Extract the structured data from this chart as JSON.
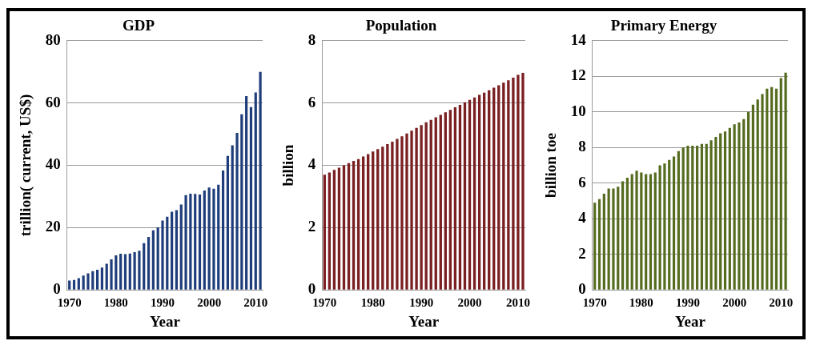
{
  "chart_data": [
    {
      "type": "bar",
      "title": "GDP",
      "xlabel": "Year",
      "ylabel": "trillion( current, US$)",
      "categories": [
        "1970",
        null,
        null,
        null,
        null,
        null,
        null,
        null,
        null,
        null,
        "1980",
        null,
        null,
        null,
        null,
        null,
        null,
        null,
        null,
        null,
        "1990",
        null,
        null,
        null,
        null,
        null,
        null,
        null,
        null,
        null,
        "2000",
        null,
        null,
        null,
        null,
        null,
        null,
        null,
        null,
        null,
        "2010",
        null
      ],
      "series": [
        {
          "color": "#1f3d7a",
          "values": [
            3.0,
            3.2,
            3.8,
            4.6,
            5.3,
            6.0,
            6.5,
            7.2,
            8.4,
            9.8,
            11.1,
            11.6,
            11.5,
            11.7,
            12.1,
            12.6,
            15.0,
            17.0,
            19.1,
            20.1,
            22.3,
            23.5,
            25.1,
            25.6,
            27.4,
            30.4,
            30.9,
            30.8,
            30.6,
            31.9,
            32.9,
            32.5,
            33.8,
            38.3,
            43.0,
            46.4,
            50.4,
            56.4,
            62.2,
            58.7,
            63.4,
            70.0
          ]
        }
      ],
      "ylim": [
        0,
        80
      ],
      "yticks": [
        0,
        20,
        40,
        60,
        80
      ],
      "grid": "y"
    },
    {
      "type": "bar",
      "title": "Population",
      "xlabel": "Year",
      "ylabel": "billion",
      "categories": [
        "1970",
        null,
        null,
        null,
        null,
        null,
        null,
        null,
        null,
        null,
        "1980",
        null,
        null,
        null,
        null,
        null,
        null,
        null,
        null,
        null,
        "1990",
        null,
        null,
        null,
        null,
        null,
        null,
        null,
        null,
        null,
        "2000",
        null,
        null,
        null,
        null,
        null,
        null,
        null,
        null,
        null,
        "2010",
        null
      ],
      "series": [
        {
          "color": "#7a1f22",
          "values": [
            3.7,
            3.77,
            3.85,
            3.92,
            4.0,
            4.07,
            4.14,
            4.2,
            4.28,
            4.36,
            4.44,
            4.52,
            4.6,
            4.68,
            4.76,
            4.85,
            4.93,
            5.02,
            5.11,
            5.2,
            5.29,
            5.38,
            5.46,
            5.54,
            5.62,
            5.7,
            5.78,
            5.86,
            5.94,
            6.02,
            6.1,
            6.18,
            6.26,
            6.33,
            6.41,
            6.49,
            6.57,
            6.65,
            6.73,
            6.81,
            6.9,
            6.97
          ]
        }
      ],
      "ylim": [
        0,
        8
      ],
      "yticks": [
        0,
        2,
        4,
        6,
        8
      ],
      "grid": "y"
    },
    {
      "type": "bar",
      "title": "Primary Energy",
      "xlabel": "Year",
      "ylabel": "billion toe",
      "categories": [
        "1970",
        null,
        null,
        null,
        null,
        null,
        null,
        null,
        null,
        null,
        "1980",
        null,
        null,
        null,
        null,
        null,
        null,
        null,
        null,
        null,
        "1990",
        null,
        null,
        null,
        null,
        null,
        null,
        null,
        null,
        null,
        "2000",
        null,
        null,
        null,
        null,
        null,
        null,
        null,
        null,
        null,
        "2010",
        null
      ],
      "series": [
        {
          "color": "#556b1f",
          "values": [
            4.9,
            5.1,
            5.4,
            5.7,
            5.7,
            5.8,
            6.1,
            6.3,
            6.5,
            6.7,
            6.6,
            6.5,
            6.5,
            6.6,
            7.0,
            7.1,
            7.3,
            7.5,
            7.8,
            8.0,
            8.1,
            8.1,
            8.1,
            8.2,
            8.2,
            8.4,
            8.6,
            8.8,
            8.9,
            9.1,
            9.3,
            9.4,
            9.6,
            10.0,
            10.4,
            10.7,
            11.0,
            11.3,
            11.4,
            11.3,
            11.9,
            12.2
          ]
        }
      ],
      "ylim": [
        0,
        14
      ],
      "yticks": [
        0,
        2,
        4,
        6,
        8,
        10,
        12,
        14
      ],
      "grid": "y"
    }
  ]
}
